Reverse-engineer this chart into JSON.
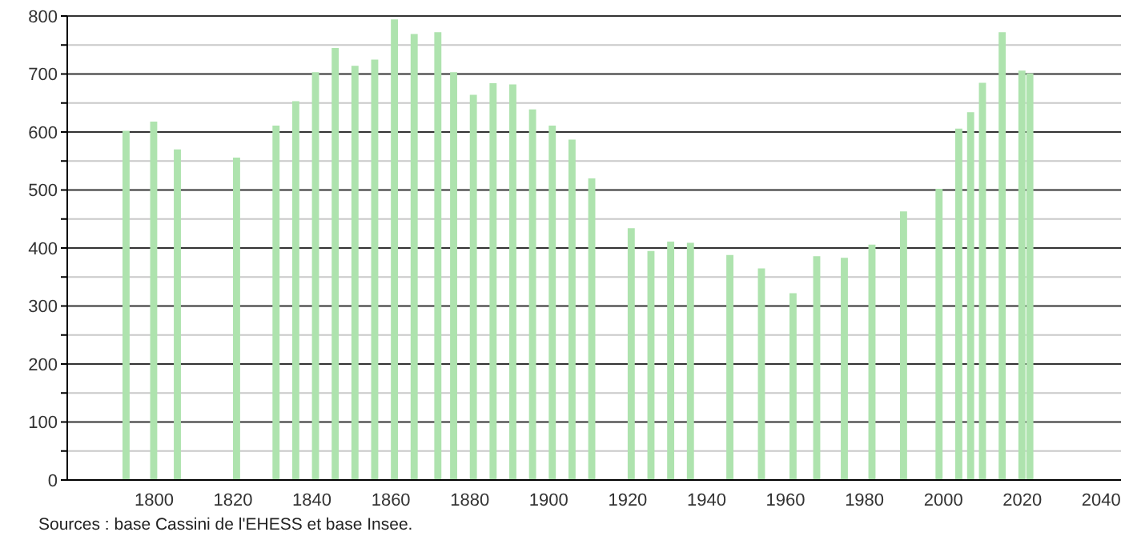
{
  "chart_data": {
    "type": "bar",
    "x": [
      1793,
      1800,
      1806,
      1821,
      1831,
      1836,
      1841,
      1846,
      1851,
      1856,
      1861,
      1866,
      1872,
      1876,
      1881,
      1886,
      1891,
      1896,
      1901,
      1906,
      1911,
      1921,
      1926,
      1931,
      1936,
      1946,
      1954,
      1962,
      1968,
      1975,
      1982,
      1990,
      1999,
      2004,
      2007,
      2010,
      2015,
      2020,
      2022
    ],
    "values": [
      602,
      618,
      570,
      556,
      611,
      653,
      703,
      745,
      714,
      725,
      794,
      769,
      772,
      703,
      664,
      684,
      682,
      639,
      611,
      587,
      520,
      434,
      395,
      411,
      409,
      388,
      365,
      322,
      386,
      383,
      406,
      463,
      502,
      606,
      634,
      685,
      772,
      706,
      701
    ],
    "color": "#aee3ae",
    "xlim": [
      1778,
      2045
    ],
    "xticks": [
      1800,
      1820,
      1840,
      1860,
      1880,
      1900,
      1920,
      1940,
      1960,
      1980,
      2000,
      2020,
      2040
    ],
    "ylim": [
      0,
      800
    ],
    "yticks": [
      0,
      {
        "value": 50,
        "label": null
      },
      100,
      {
        "value": 150,
        "label": null
      },
      200,
      {
        "value": 250,
        "label": null
      },
      300,
      {
        "value": 350,
        "label": null
      },
      400,
      {
        "value": 450,
        "label": null
      },
      500,
      {
        "value": 550,
        "label": null
      },
      600,
      {
        "value": 650,
        "label": null
      },
      700,
      {
        "value": 750,
        "label": null
      },
      800
    ],
    "grid": "y",
    "annotations": [
      "Sources : base Cassini de l'EHESS et base Insee."
    ]
  }
}
